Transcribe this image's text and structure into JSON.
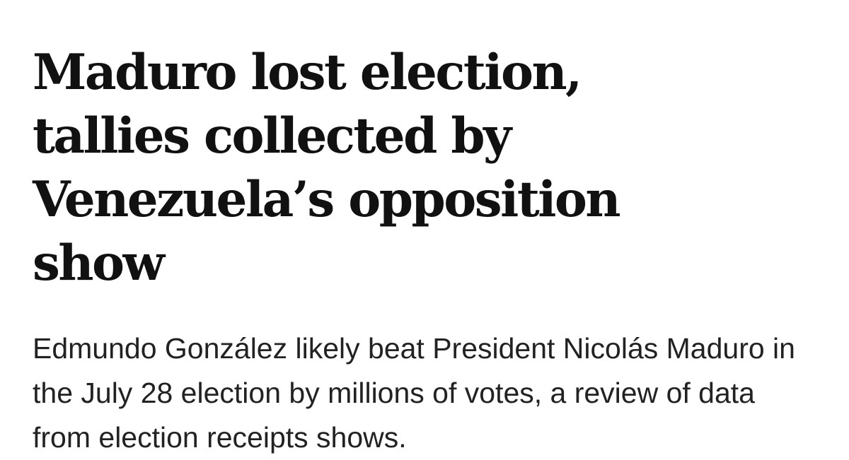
{
  "article": {
    "headline": "Maduro lost election, tallies collected by Venezuela’s opposition show",
    "dek": "Edmundo González likely beat President Nicolás Maduro in the July 28 election by millions of votes, a review of data from election receipts shows."
  }
}
